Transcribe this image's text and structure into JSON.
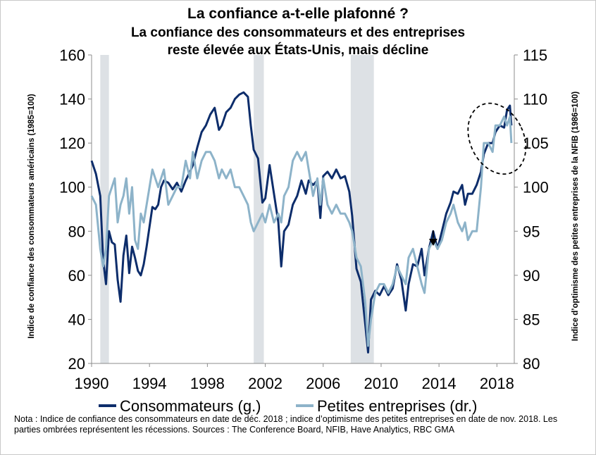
{
  "chart_data": {
    "type": "line",
    "title": "La confiance a-t-elle plafonné ?",
    "subtitle_lines": [
      "La confiance des consommateurs et des entreprises",
      "reste élevée aux États-Unis, mais décline"
    ],
    "ylabel_left": "Indice de confiance des consommateurs américains (1985=100)",
    "ylabel_right": "Indice d’optimisme des petites entreprises de la NFIB (1986=100)",
    "x_range": [
      1990,
      2019.2
    ],
    "x_ticks": [
      1990,
      1994,
      1998,
      2002,
      2006,
      2010,
      2014,
      2018
    ],
    "ylim_left": [
      20,
      160
    ],
    "y_ticks_left": [
      20,
      40,
      60,
      80,
      100,
      120,
      140,
      160
    ],
    "ylim_right": [
      80,
      115
    ],
    "y_ticks_right": [
      80,
      85,
      90,
      95,
      100,
      105,
      110,
      115
    ],
    "grid": false,
    "legend_position": "bottom",
    "recessions": [
      [
        1990.6,
        1991.2
      ],
      [
        2001.2,
        2001.9
      ],
      [
        2007.9,
        2009.5
      ]
    ],
    "series": [
      {
        "name": "Consommateurs (g.)",
        "axis": "left",
        "color": "#0d2d6b",
        "points": [
          [
            1990.0,
            112
          ],
          [
            1990.3,
            106
          ],
          [
            1990.6,
            96
          ],
          [
            1990.8,
            67
          ],
          [
            1991.0,
            56
          ],
          [
            1991.2,
            80
          ],
          [
            1991.4,
            75
          ],
          [
            1991.6,
            74
          ],
          [
            1991.8,
            58
          ],
          [
            1992.0,
            48
          ],
          [
            1992.2,
            69
          ],
          [
            1992.4,
            78
          ],
          [
            1992.6,
            61
          ],
          [
            1992.8,
            73
          ],
          [
            1993.0,
            68
          ],
          [
            1993.2,
            62
          ],
          [
            1993.4,
            60
          ],
          [
            1993.6,
            65
          ],
          [
            1993.8,
            73
          ],
          [
            1994.0,
            82
          ],
          [
            1994.2,
            91
          ],
          [
            1994.4,
            90
          ],
          [
            1994.6,
            92
          ],
          [
            1994.8,
            100
          ],
          [
            1995.0,
            103
          ],
          [
            1995.3,
            102
          ],
          [
            1995.6,
            99
          ],
          [
            1995.9,
            102
          ],
          [
            1996.2,
            98
          ],
          [
            1996.5,
            103
          ],
          [
            1996.8,
            107
          ],
          [
            1997.0,
            110
          ],
          [
            1997.3,
            118
          ],
          [
            1997.6,
            125
          ],
          [
            1997.9,
            128
          ],
          [
            1998.2,
            133
          ],
          [
            1998.5,
            136
          ],
          [
            1998.8,
            126
          ],
          [
            1999.0,
            128
          ],
          [
            1999.3,
            134
          ],
          [
            1999.6,
            136
          ],
          [
            1999.9,
            140
          ],
          [
            2000.2,
            142
          ],
          [
            2000.5,
            143
          ],
          [
            2000.8,
            141
          ],
          [
            2001.0,
            128
          ],
          [
            2001.2,
            117
          ],
          [
            2001.5,
            113
          ],
          [
            2001.8,
            93
          ],
          [
            2002.0,
            95
          ],
          [
            2002.3,
            110
          ],
          [
            2002.6,
            97
          ],
          [
            2002.9,
            84
          ],
          [
            2003.1,
            64
          ],
          [
            2003.3,
            80
          ],
          [
            2003.6,
            83
          ],
          [
            2003.9,
            92
          ],
          [
            2004.2,
            96
          ],
          [
            2004.5,
            103
          ],
          [
            2004.8,
            97
          ],
          [
            2005.0,
            103
          ],
          [
            2005.3,
            101
          ],
          [
            2005.6,
            103
          ],
          [
            2005.8,
            86
          ],
          [
            2006.0,
            105
          ],
          [
            2006.3,
            107
          ],
          [
            2006.6,
            104
          ],
          [
            2006.9,
            108
          ],
          [
            2007.2,
            104
          ],
          [
            2007.5,
            105
          ],
          [
            2007.8,
            98
          ],
          [
            2008.0,
            87
          ],
          [
            2008.3,
            63
          ],
          [
            2008.6,
            57
          ],
          [
            2008.9,
            38
          ],
          [
            2009.1,
            25
          ],
          [
            2009.3,
            49
          ],
          [
            2009.6,
            53
          ],
          [
            2009.9,
            51
          ],
          [
            2010.2,
            55
          ],
          [
            2010.5,
            51
          ],
          [
            2010.8,
            54
          ],
          [
            2011.1,
            65
          ],
          [
            2011.4,
            58
          ],
          [
            2011.7,
            44
          ],
          [
            2011.9,
            56
          ],
          [
            2012.2,
            65
          ],
          [
            2012.5,
            64
          ],
          [
            2012.8,
            72
          ],
          [
            2013.0,
            60
          ],
          [
            2013.3,
            72
          ],
          [
            2013.6,
            80
          ],
          [
            2013.9,
            72
          ],
          [
            2014.2,
            80
          ],
          [
            2014.5,
            88
          ],
          [
            2014.8,
            93
          ],
          [
            2015.0,
            98
          ],
          [
            2015.3,
            97
          ],
          [
            2015.6,
            101
          ],
          [
            2015.8,
            92
          ],
          [
            2016.0,
            97
          ],
          [
            2016.3,
            97
          ],
          [
            2016.6,
            101
          ],
          [
            2016.9,
            107
          ],
          [
            2017.1,
            115
          ],
          [
            2017.4,
            120
          ],
          [
            2017.7,
            120
          ],
          [
            2017.9,
            125
          ],
          [
            2018.2,
            128
          ],
          [
            2018.5,
            127
          ],
          [
            2018.7,
            135
          ],
          [
            2018.9,
            137
          ],
          [
            2019.0,
            128
          ]
        ]
      },
      {
        "name": "Petites entreprises (dr.)",
        "axis": "right",
        "color": "#8db3c9",
        "points": [
          [
            1990.0,
            99
          ],
          [
            1990.3,
            98
          ],
          [
            1990.6,
            93
          ],
          [
            1990.8,
            91
          ],
          [
            1991.0,
            93
          ],
          [
            1991.2,
            99
          ],
          [
            1991.4,
            100
          ],
          [
            1991.6,
            101
          ],
          [
            1991.8,
            96
          ],
          [
            1992.0,
            98
          ],
          [
            1992.2,
            99
          ],
          [
            1992.4,
            101
          ],
          [
            1992.6,
            97
          ],
          [
            1992.8,
            100
          ],
          [
            1993.0,
            94
          ],
          [
            1993.2,
            93
          ],
          [
            1993.4,
            97
          ],
          [
            1993.6,
            96
          ],
          [
            1993.8,
            98
          ],
          [
            1994.0,
            100
          ],
          [
            1994.2,
            102
          ],
          [
            1994.4,
            101
          ],
          [
            1994.6,
            100
          ],
          [
            1994.8,
            101
          ],
          [
            1995.0,
            102
          ],
          [
            1995.3,
            98
          ],
          [
            1995.6,
            99
          ],
          [
            1995.9,
            100
          ],
          [
            1996.2,
            100
          ],
          [
            1996.5,
            103
          ],
          [
            1996.8,
            101
          ],
          [
            1997.0,
            104
          ],
          [
            1997.3,
            101
          ],
          [
            1997.6,
            103
          ],
          [
            1997.9,
            104
          ],
          [
            1998.2,
            104
          ],
          [
            1998.5,
            103
          ],
          [
            1998.8,
            101
          ],
          [
            1999.0,
            102
          ],
          [
            1999.3,
            101
          ],
          [
            1999.6,
            102
          ],
          [
            1999.9,
            100
          ],
          [
            2000.2,
            100
          ],
          [
            2000.5,
            99
          ],
          [
            2000.8,
            98
          ],
          [
            2001.0,
            96
          ],
          [
            2001.2,
            95
          ],
          [
            2001.5,
            96
          ],
          [
            2001.8,
            97
          ],
          [
            2002.0,
            96
          ],
          [
            2002.3,
            98
          ],
          [
            2002.6,
            96
          ],
          [
            2002.9,
            97
          ],
          [
            2003.1,
            96
          ],
          [
            2003.3,
            99
          ],
          [
            2003.6,
            100
          ],
          [
            2003.9,
            103
          ],
          [
            2004.2,
            104
          ],
          [
            2004.5,
            103
          ],
          [
            2004.8,
            104
          ],
          [
            2005.0,
            102
          ],
          [
            2005.3,
            99
          ],
          [
            2005.6,
            101
          ],
          [
            2005.8,
            98
          ],
          [
            2006.0,
            101
          ],
          [
            2006.3,
            98
          ],
          [
            2006.6,
            97
          ],
          [
            2006.9,
            98
          ],
          [
            2007.2,
            97
          ],
          [
            2007.5,
            97
          ],
          [
            2007.8,
            96
          ],
          [
            2008.0,
            95
          ],
          [
            2008.3,
            92
          ],
          [
            2008.6,
            91
          ],
          [
            2008.9,
            87
          ],
          [
            2009.1,
            82
          ],
          [
            2009.3,
            85
          ],
          [
            2009.6,
            88
          ],
          [
            2009.9,
            89
          ],
          [
            2010.2,
            89
          ],
          [
            2010.5,
            88
          ],
          [
            2010.8,
            89
          ],
          [
            2011.1,
            91
          ],
          [
            2011.4,
            90
          ],
          [
            2011.7,
            89
          ],
          [
            2011.9,
            92
          ],
          [
            2012.2,
            93
          ],
          [
            2012.5,
            91
          ],
          [
            2012.8,
            89
          ],
          [
            2013.0,
            88
          ],
          [
            2013.3,
            93
          ],
          [
            2013.6,
            94
          ],
          [
            2013.9,
            93
          ],
          [
            2014.2,
            94
          ],
          [
            2014.5,
            96
          ],
          [
            2014.8,
            97
          ],
          [
            2015.0,
            98
          ],
          [
            2015.3,
            96
          ],
          [
            2015.6,
            95
          ],
          [
            2015.8,
            96
          ],
          [
            2016.0,
            94
          ],
          [
            2016.3,
            95
          ],
          [
            2016.6,
            95
          ],
          [
            2016.9,
            100
          ],
          [
            2017.1,
            105
          ],
          [
            2017.4,
            105
          ],
          [
            2017.7,
            104
          ],
          [
            2017.9,
            107
          ],
          [
            2018.2,
            107
          ],
          [
            2018.5,
            108
          ],
          [
            2018.7,
            107
          ],
          [
            2018.9,
            108
          ],
          [
            2019.0,
            105
          ]
        ]
      }
    ],
    "annotations": {
      "down_arrow_at": [
        2013.6,
        93.5
      ],
      "ellipse_center": [
        2018.0,
        105.5
      ],
      "ellipse_span_years": 3.7,
      "ellipse_span_right": 8.4
    }
  },
  "note": "Nota : Indice de confiance des consommateurs en date de déc. 2018 ; indice d’optimisme des petites entreprises en date de nov. 2018. Les parties ombrées représentent les récessions. Sources : The Conference Board, NFIB, Have Analytics, RBC GMA"
}
